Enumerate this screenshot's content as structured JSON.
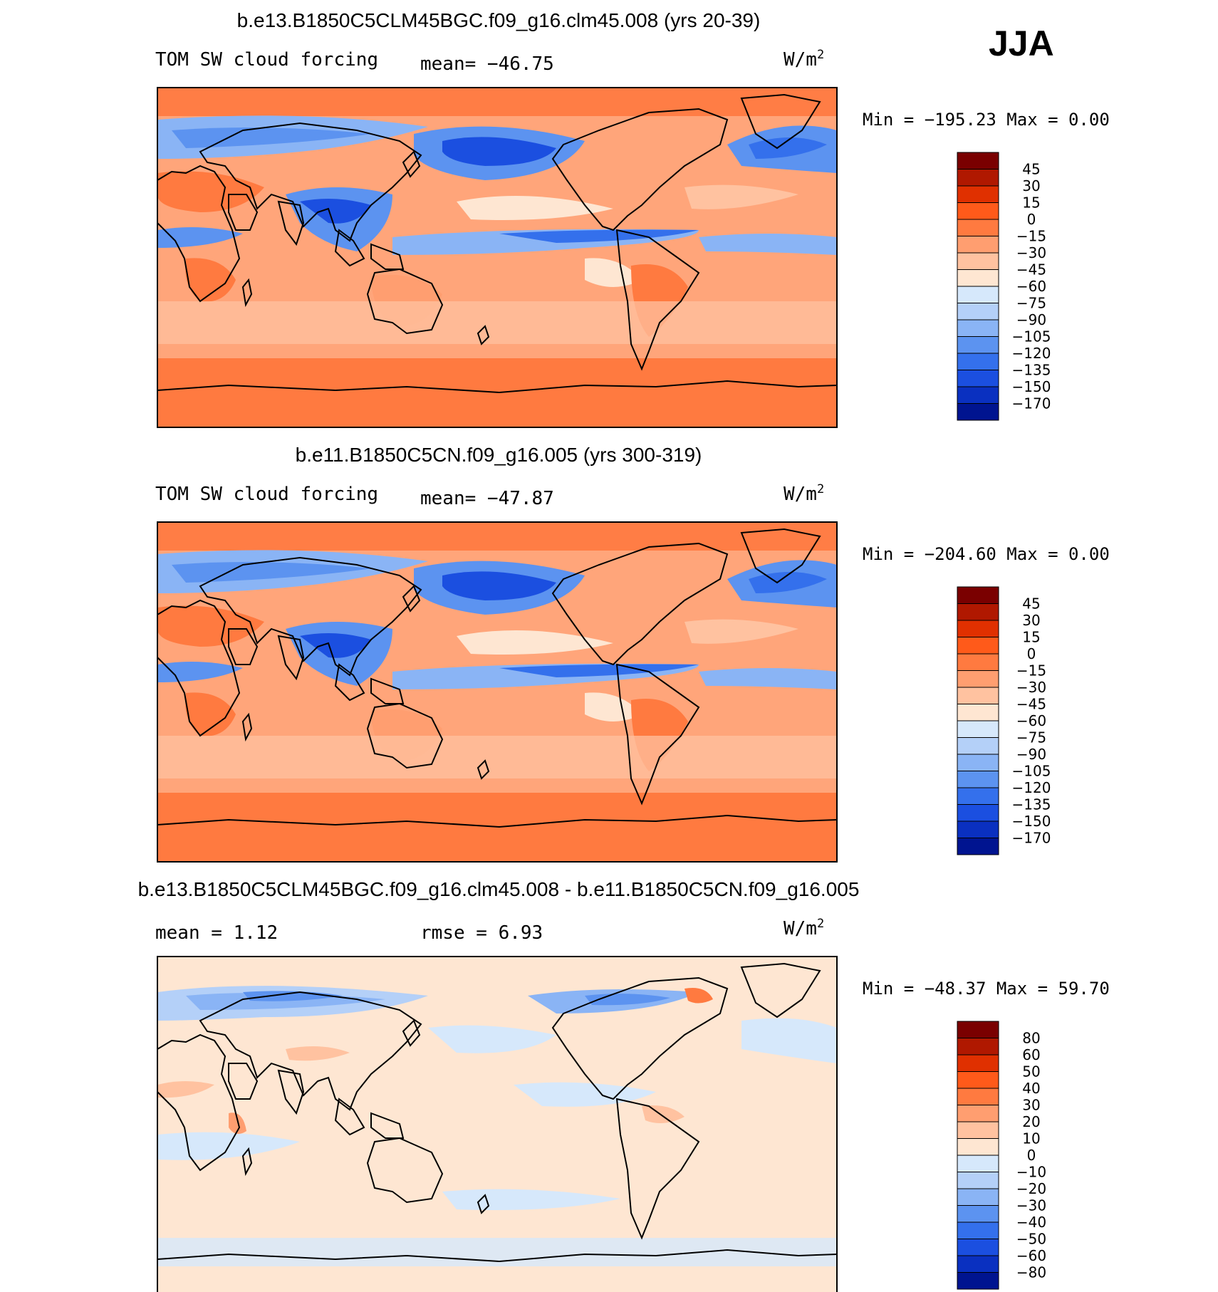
{
  "season": "JJA",
  "panels": [
    {
      "id": "p1",
      "title": "b.e13.B1850C5CLM45BGC.f09_g16.clm45.008 (yrs 20-39)",
      "left_label": "TOM SW cloud forcing",
      "mid_label": "mean=  −46.75",
      "units": "W/m",
      "units_sup": "2",
      "minmax": "Min  =  −195.23  Max  =      0.00",
      "colorbar": {
        "labels": [
          "45",
          "30",
          "15",
          "0",
          "−15",
          "−30",
          "−45",
          "−60",
          "−75",
          "−90",
          "−105",
          "−120",
          "−135",
          "−150",
          "−170"
        ],
        "colors": [
          "#7a0000",
          "#b01800",
          "#e03000",
          "#ff5a1a",
          "#ff7a40",
          "#ff9e70",
          "#ffc2a0",
          "#fee6d2",
          "#d6e8fb",
          "#b4d0f8",
          "#8ab4f5",
          "#5c93f0",
          "#3470ec",
          "#1b4fe0",
          "#0a30c0",
          "#001490"
        ]
      }
    },
    {
      "id": "p2",
      "title": "b.e11.B1850C5CN.f09_g16.005 (yrs 300-319)",
      "left_label": "TOM SW cloud forcing",
      "mid_label": "mean=  −47.87",
      "units": "W/m",
      "units_sup": "2",
      "minmax": "Min  =  −204.60  Max  =      0.00",
      "colorbar": {
        "labels": [
          "45",
          "30",
          "15",
          "0",
          "−15",
          "−30",
          "−45",
          "−60",
          "−75",
          "−90",
          "−105",
          "−120",
          "−135",
          "−150",
          "−170"
        ],
        "colors": [
          "#7a0000",
          "#b01800",
          "#e03000",
          "#ff5a1a",
          "#ff7a40",
          "#ff9e70",
          "#ffc2a0",
          "#fee6d2",
          "#d6e8fb",
          "#b4d0f8",
          "#8ab4f5",
          "#5c93f0",
          "#3470ec",
          "#1b4fe0",
          "#0a30c0",
          "#001490"
        ]
      }
    },
    {
      "id": "p3",
      "title": "b.e13.B1850C5CLM45BGC.f09_g16.clm45.008 - b.e11.B1850C5CN.f09_g16.005",
      "left_label": "mean  =     1.12",
      "mid_label": "rmse  =     6.93",
      "units": "W/m",
      "units_sup": "2",
      "minmax": "Min  =  −48.37  Max  =    59.70",
      "colorbar": {
        "labels": [
          "80",
          "60",
          "50",
          "40",
          "30",
          "20",
          "10",
          "0",
          "−10",
          "−20",
          "−30",
          "−40",
          "−50",
          "−60",
          "−80"
        ],
        "colors": [
          "#7a0000",
          "#b01800",
          "#e03000",
          "#ff5a1a",
          "#ff7a40",
          "#ff9e70",
          "#ffc2a0",
          "#fee6d2",
          "#d6e8fb",
          "#b4d0f8",
          "#8ab4f5",
          "#5c93f0",
          "#3470ec",
          "#1b4fe0",
          "#0a30c0",
          "#001490"
        ]
      }
    }
  ],
  "colors": {
    "field_base_orange": "#ff7d45",
    "field_light_peach": "#ffc6a6",
    "diff_base": "#fee6d2"
  }
}
